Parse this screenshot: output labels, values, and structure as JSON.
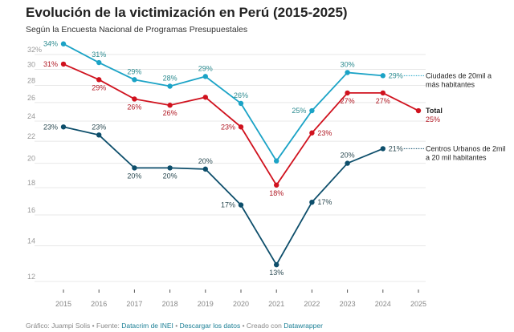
{
  "chart_data": {
    "type": "line",
    "title": "Evolución de la victimización en Perú (2015-2025)",
    "subtitle": "Según la Encuesta Nacional de Programas Presupuestales",
    "x": [
      "2015",
      "2016",
      "2017",
      "2018",
      "2019",
      "2020",
      "2021",
      "2022",
      "2023",
      "2024",
      "2025"
    ],
    "yscale": "log",
    "ylim": [
      12,
      34
    ],
    "yticks": [
      {
        "v": 32,
        "label": "32%"
      },
      {
        "v": 30,
        "label": "30"
      },
      {
        "v": 28,
        "label": "28"
      },
      {
        "v": 26,
        "label": "26"
      },
      {
        "v": 24,
        "label": "24"
      },
      {
        "v": 22,
        "label": "22"
      },
      {
        "v": 20,
        "label": "20"
      },
      {
        "v": 18,
        "label": "18"
      },
      {
        "v": 16,
        "label": "16"
      },
      {
        "v": 14,
        "label": "14"
      },
      {
        "v": 12,
        "label": "12"
      }
    ],
    "grid": true,
    "series": [
      {
        "name": "Ciudades de 20mil a más habitantes",
        "color": "#1ba3c6",
        "labelcolor": "#2a8a8f",
        "values": [
          33.5,
          30.9,
          28.7,
          27.9,
          29.1,
          25.9,
          20.2,
          25.1,
          29.6,
          29.2,
          null
        ],
        "labels": [
          "34%",
          "31%",
          "29%",
          "28%",
          "29%",
          "26%",
          "",
          "25%",
          "30%",
          "29%",
          ""
        ]
      },
      {
        "name": "Total",
        "color": "#d0121e",
        "labelcolor": "#b01722",
        "values": [
          30.7,
          28.7,
          26.4,
          25.7,
          26.6,
          23.4,
          18.2,
          22.8,
          27.1,
          27.1,
          25.1
        ],
        "labels": [
          "31%",
          "29%",
          "26%",
          "26%",
          "",
          "23%",
          "18%",
          "23%",
          "27%",
          "27%",
          "25%"
        ]
      },
      {
        "name": "Centros Urbanos de 2mil a 20 mil habitantes",
        "color": "#0d4e6b",
        "labelcolor": "#2b4a52",
        "values": [
          23.4,
          22.6,
          19.6,
          19.6,
          19.5,
          16.7,
          12.9,
          16.9,
          20.0,
          21.3,
          null
        ],
        "labels": [
          "23%",
          "23%",
          "20%",
          "20%",
          "20%",
          "17%",
          "13%",
          "17%",
          "20%",
          "21%",
          ""
        ]
      }
    ]
  },
  "footer": {
    "credit": "Gráfico: Juampi Solis • Fuente: ",
    "source": "Datacrim de INEI",
    "sep1": " • ",
    "download": "Descargar los datos",
    "sep2": " • Creado con ",
    "tool": "Datawrapper"
  }
}
